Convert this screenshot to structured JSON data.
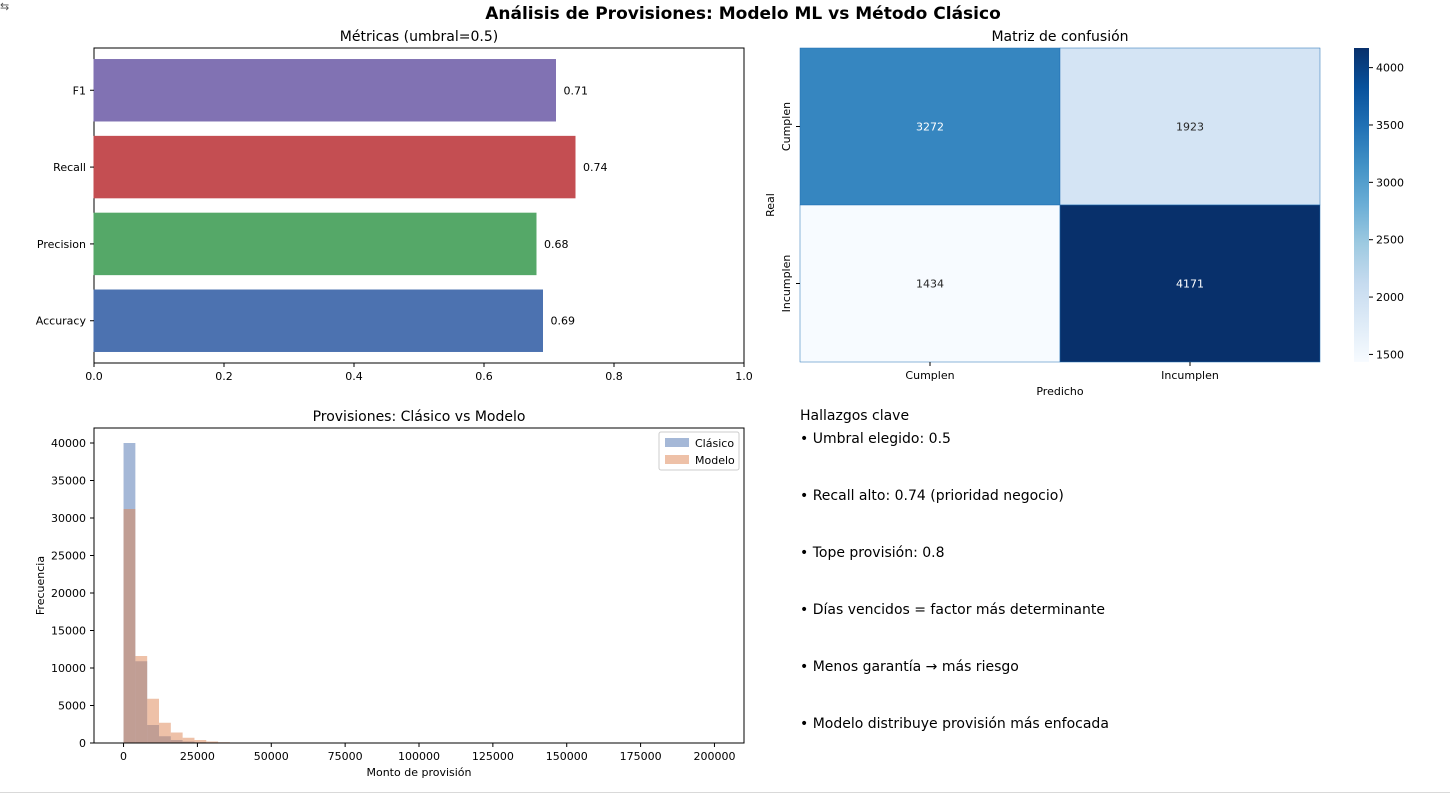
{
  "suptitle": "Análisis de Provisiones: Modelo ML vs Método Clásico",
  "colors": {
    "f1": "#8172b3",
    "recall": "#c44e52",
    "precision": "#55a868",
    "accuracy": "#4c72b0",
    "clasico": "#4c72b0",
    "modelo": "#dd8452"
  },
  "chart_data": [
    {
      "type": "bar",
      "orientation": "horizontal",
      "title": "Métricas (umbral=0.5)",
      "categories": [
        "Accuracy",
        "Precision",
        "Recall",
        "F1"
      ],
      "values": [
        0.69,
        0.68,
        0.74,
        0.71
      ],
      "data_labels": [
        "0.69",
        "0.68",
        "0.74",
        "0.71"
      ],
      "xlim": [
        0,
        1.0
      ],
      "xticks": [
        "0.0",
        "0.2",
        "0.4",
        "0.6",
        "0.8",
        "1.0"
      ],
      "grid": false
    },
    {
      "type": "heatmap",
      "title": "Matriz de confusión",
      "xlabel": "Predicho",
      "ylabel": "Real",
      "x_categories": [
        "Cumplen",
        "Incumplen"
      ],
      "y_categories": [
        "Cumplen",
        "Incumplen"
      ],
      "values": [
        [
          3272,
          1923
        ],
        [
          1434,
          4171
        ]
      ],
      "colormap": "Blues",
      "colorbar_range": [
        1434,
        4171
      ],
      "colorbar_ticks": [
        "1500",
        "2000",
        "2500",
        "3000",
        "3500",
        "4000"
      ]
    },
    {
      "type": "histogram",
      "title": "Provisiones: Clásico vs Modelo",
      "xlabel": "Monto de provisión",
      "ylabel": "Frecuencia",
      "xlim": [
        -10000,
        210000
      ],
      "ylim": [
        0,
        42000
      ],
      "xticks": [
        "0",
        "25000",
        "50000",
        "75000",
        "100000",
        "125000",
        "150000",
        "175000",
        "200000"
      ],
      "yticks": [
        "0",
        "5000",
        "10000",
        "15000",
        "20000",
        "25000",
        "30000",
        "35000",
        "40000"
      ],
      "bin_width": 4000,
      "bin_start": 0,
      "legend_position": "top-right",
      "series": [
        {
          "name": "Clásico",
          "values": [
            40000,
            10900,
            2400,
            900,
            400,
            200,
            100,
            50,
            30,
            20,
            10
          ]
        },
        {
          "name": "Modelo",
          "values": [
            31200,
            11600,
            5900,
            2700,
            1400,
            700,
            400,
            200,
            100,
            50,
            20,
            10
          ]
        }
      ]
    }
  ],
  "findings": {
    "title": "Hallazgos clave",
    "items": [
      "•  Umbral elegido: 0.5",
      "• Recall alto: 0.74 (prioridad negocio)",
      "• Tope provisión: 0.8",
      "• Días vencidos = factor más determinante",
      "• Menos garantía → más riesgo",
      "• Modelo distribuye provisión más enfocada"
    ]
  }
}
